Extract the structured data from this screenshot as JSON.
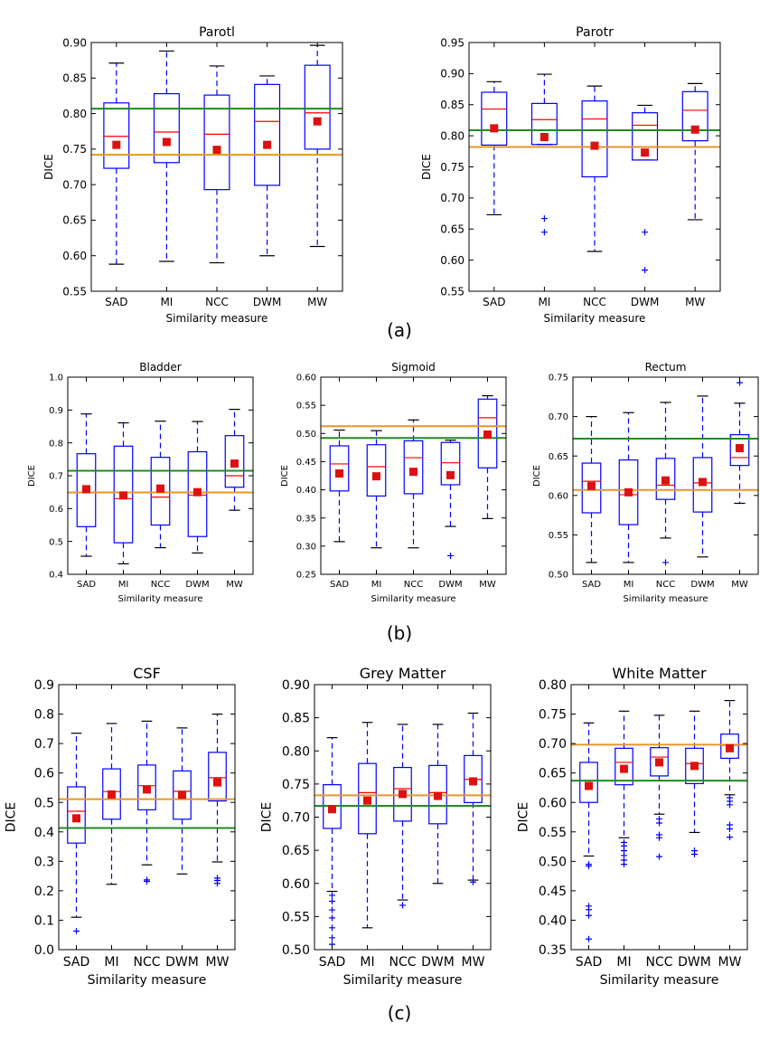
{
  "figure": {
    "common": {
      "xlabel": "Similarity measure",
      "ylabel": "DICE",
      "categories": [
        "SAD",
        "MI",
        "NCC",
        "DWM",
        "MW"
      ]
    },
    "group_labels": [
      "(a)",
      "(b)",
      "(c)"
    ]
  },
  "colors": {
    "box": "#0000ff",
    "median": "#ff0000",
    "mean": "#dd1111",
    "line_green": "#228b22",
    "line_orange": "#e6962a"
  },
  "chart_data": [
    {
      "type": "box",
      "title": "Parotl",
      "xlabel": "Similarity measure",
      "ylabel": "DICE",
      "categories": [
        "SAD",
        "MI",
        "NCC",
        "DWM",
        "MW"
      ],
      "ylim": [
        0.55,
        0.9
      ],
      "yticks": [
        "0.55",
        "0.60",
        "0.65",
        "0.70",
        "0.75",
        "0.80",
        "0.85",
        "0.90"
      ],
      "boxes": [
        {
          "whislo": 0.588,
          "q1": 0.723,
          "med": 0.768,
          "q3": 0.815,
          "whishi": 0.871,
          "mean": 0.756,
          "fliers": []
        },
        {
          "whislo": 0.592,
          "q1": 0.731,
          "med": 0.774,
          "q3": 0.828,
          "whishi": 0.888,
          "mean": 0.76,
          "fliers": []
        },
        {
          "whislo": 0.59,
          "q1": 0.693,
          "med": 0.771,
          "q3": 0.826,
          "whishi": 0.867,
          "mean": 0.749,
          "fliers": []
        },
        {
          "whislo": 0.6,
          "q1": 0.699,
          "med": 0.789,
          "q3": 0.841,
          "whishi": 0.853,
          "mean": 0.756,
          "fliers": []
        },
        {
          "whislo": 0.613,
          "q1": 0.75,
          "med": 0.801,
          "q3": 0.868,
          "whishi": 0.896,
          "mean": 0.789,
          "fliers": []
        }
      ],
      "hlines": {
        "green": 0.807,
        "orange": 0.742
      }
    },
    {
      "type": "box",
      "title": "Parotr",
      "xlabel": "Similarity measure",
      "ylabel": "DICE",
      "categories": [
        "SAD",
        "MI",
        "NCC",
        "DWM",
        "MW"
      ],
      "ylim": [
        0.55,
        0.95
      ],
      "yticks": [
        "0.55",
        "0.60",
        "0.65",
        "0.70",
        "0.75",
        "0.80",
        "0.85",
        "0.90",
        "0.95"
      ],
      "boxes": [
        {
          "whislo": 0.673,
          "q1": 0.785,
          "med": 0.843,
          "q3": 0.87,
          "whishi": 0.887,
          "mean": 0.812,
          "fliers": []
        },
        {
          "whislo": 0.786,
          "q1": 0.786,
          "med": 0.826,
          "q3": 0.852,
          "whishi": 0.899,
          "mean": 0.798,
          "fliers": [
            0.667,
            0.645
          ]
        },
        {
          "whislo": 0.614,
          "q1": 0.734,
          "med": 0.827,
          "q3": 0.856,
          "whishi": 0.88,
          "mean": 0.784,
          "fliers": []
        },
        {
          "whislo": 0.761,
          "q1": 0.761,
          "med": 0.817,
          "q3": 0.837,
          "whishi": 0.849,
          "mean": 0.773,
          "fliers": [
            0.645,
            0.584
          ]
        },
        {
          "whislo": 0.665,
          "q1": 0.792,
          "med": 0.841,
          "q3": 0.871,
          "whishi": 0.884,
          "mean": 0.81,
          "fliers": []
        }
      ],
      "hlines": {
        "green": 0.809,
        "orange": 0.782
      }
    },
    {
      "type": "box",
      "title": "Bladder",
      "xlabel": "Similarity measure",
      "ylabel": "DICE",
      "categories": [
        "SAD",
        "MI",
        "NCC",
        "DWM",
        "MW"
      ],
      "ylim": [
        0.4,
        1.0
      ],
      "yticks": [
        "0.4",
        "0.5",
        "0.6",
        "0.7",
        "0.8",
        "0.9",
        "1.0"
      ],
      "boxes": [
        {
          "whislo": 0.455,
          "q1": 0.545,
          "med": 0.65,
          "q3": 0.767,
          "whishi": 0.888,
          "mean": 0.659,
          "fliers": []
        },
        {
          "whislo": 0.432,
          "q1": 0.496,
          "med": 0.63,
          "q3": 0.79,
          "whishi": 0.861,
          "mean": 0.64,
          "fliers": []
        },
        {
          "whislo": 0.481,
          "q1": 0.55,
          "med": 0.635,
          "q3": 0.756,
          "whishi": 0.866,
          "mean": 0.661,
          "fliers": []
        },
        {
          "whislo": 0.465,
          "q1": 0.515,
          "med": 0.641,
          "q3": 0.773,
          "whishi": 0.865,
          "mean": 0.65,
          "fliers": []
        },
        {
          "whislo": 0.595,
          "q1": 0.665,
          "med": 0.7,
          "q3": 0.822,
          "whishi": 0.902,
          "mean": 0.737,
          "fliers": []
        }
      ],
      "hlines": {
        "green": 0.715,
        "orange": 0.649
      }
    },
    {
      "type": "box",
      "title": "Sigmoid",
      "xlabel": "Similarity measure",
      "ylabel": "DICE",
      "categories": [
        "SAD",
        "MI",
        "NCC",
        "DWM",
        "MW"
      ],
      "ylim": [
        0.25,
        0.6
      ],
      "yticks": [
        "0.25",
        "0.30",
        "0.35",
        "0.40",
        "0.45",
        "0.50",
        "0.55",
        "0.60"
      ],
      "boxes": [
        {
          "whislo": 0.308,
          "q1": 0.398,
          "med": 0.446,
          "q3": 0.478,
          "whishi": 0.506,
          "mean": 0.429,
          "fliers": []
        },
        {
          "whislo": 0.297,
          "q1": 0.389,
          "med": 0.441,
          "q3": 0.48,
          "whishi": 0.505,
          "mean": 0.424,
          "fliers": []
        },
        {
          "whislo": 0.297,
          "q1": 0.393,
          "med": 0.457,
          "q3": 0.487,
          "whishi": 0.524,
          "mean": 0.432,
          "fliers": []
        },
        {
          "whislo": 0.335,
          "q1": 0.409,
          "med": 0.448,
          "q3": 0.484,
          "whishi": 0.488,
          "mean": 0.426,
          "fliers": [
            0.283
          ]
        },
        {
          "whislo": 0.349,
          "q1": 0.439,
          "med": 0.528,
          "q3": 0.561,
          "whishi": 0.567,
          "mean": 0.498,
          "fliers": []
        }
      ],
      "hlines": {
        "green": 0.492,
        "orange": 0.513
      }
    },
    {
      "type": "box",
      "title": "Rectum",
      "xlabel": "Similarity measure",
      "ylabel": "DICE",
      "categories": [
        "SAD",
        "MI",
        "NCC",
        "DWM",
        "MW"
      ],
      "ylim": [
        0.5,
        0.75
      ],
      "yticks": [
        "0.50",
        "0.55",
        "0.60",
        "0.65",
        "0.70",
        "0.75"
      ],
      "boxes": [
        {
          "whislo": 0.515,
          "q1": 0.578,
          "med": 0.618,
          "q3": 0.641,
          "whishi": 0.7,
          "mean": 0.612,
          "fliers": []
        },
        {
          "whislo": 0.515,
          "q1": 0.563,
          "med": 0.601,
          "q3": 0.645,
          "whishi": 0.705,
          "mean": 0.604,
          "fliers": []
        },
        {
          "whislo": 0.546,
          "q1": 0.595,
          "med": 0.613,
          "q3": 0.647,
          "whishi": 0.718,
          "mean": 0.619,
          "fliers": [
            0.515
          ]
        },
        {
          "whislo": 0.522,
          "q1": 0.579,
          "med": 0.616,
          "q3": 0.648,
          "whishi": 0.726,
          "mean": 0.617,
          "fliers": []
        },
        {
          "whislo": 0.59,
          "q1": 0.638,
          "med": 0.648,
          "q3": 0.677,
          "whishi": 0.717,
          "mean": 0.66,
          "fliers": [
            0.743
          ]
        }
      ],
      "hlines": {
        "green": 0.672,
        "orange": 0.607
      }
    },
    {
      "type": "box",
      "title": "CSF",
      "xlabel": "Similarity measure",
      "ylabel": "DICE",
      "categories": [
        "SAD",
        "MI",
        "NCC",
        "DWM",
        "MW"
      ],
      "ylim": [
        0.0,
        0.9
      ],
      "yticks": [
        "0.0",
        "0.1",
        "0.2",
        "0.3",
        "0.4",
        "0.5",
        "0.6",
        "0.7",
        "0.8",
        "0.9"
      ],
      "boxes": [
        {
          "whislo": 0.11,
          "q1": 0.362,
          "med": 0.47,
          "q3": 0.553,
          "whishi": 0.735,
          "mean": 0.446,
          "fliers": [
            0.063
          ]
        },
        {
          "whislo": 0.222,
          "q1": 0.443,
          "med": 0.537,
          "q3": 0.614,
          "whishi": 0.768,
          "mean": 0.527,
          "fliers": []
        },
        {
          "whislo": 0.288,
          "q1": 0.475,
          "med": 0.557,
          "q3": 0.627,
          "whishi": 0.776,
          "mean": 0.544,
          "fliers": [
            0.237,
            0.232
          ]
        },
        {
          "whislo": 0.257,
          "q1": 0.443,
          "med": 0.538,
          "q3": 0.607,
          "whishi": 0.753,
          "mean": 0.526,
          "fliers": []
        },
        {
          "whislo": 0.298,
          "q1": 0.505,
          "med": 0.584,
          "q3": 0.67,
          "whishi": 0.8,
          "mean": 0.568,
          "fliers": [
            0.243,
            0.235,
            0.225
          ]
        }
      ],
      "hlines": {
        "green": 0.413,
        "orange": 0.511
      }
    },
    {
      "type": "box",
      "title": "Grey Matter",
      "xlabel": "Similarity measure",
      "ylabel": "DICE",
      "categories": [
        "SAD",
        "MI",
        "NCC",
        "DWM",
        "MW"
      ],
      "ylim": [
        0.5,
        0.9
      ],
      "yticks": [
        "0.50",
        "0.55",
        "0.60",
        "0.65",
        "0.70",
        "0.75",
        "0.80",
        "0.85",
        "0.90"
      ],
      "boxes": [
        {
          "whislo": 0.588,
          "q1": 0.683,
          "med": 0.717,
          "q3": 0.749,
          "whishi": 0.82,
          "mean": 0.712,
          "fliers": [
            0.582,
            0.573,
            0.56,
            0.548,
            0.533,
            0.518,
            0.508
          ]
        },
        {
          "whislo": 0.533,
          "q1": 0.675,
          "med": 0.737,
          "q3": 0.781,
          "whishi": 0.843,
          "mean": 0.725,
          "fliers": []
        },
        {
          "whislo": 0.575,
          "q1": 0.694,
          "med": 0.743,
          "q3": 0.775,
          "whishi": 0.84,
          "mean": 0.735,
          "fliers": [
            0.567
          ]
        },
        {
          "whislo": 0.6,
          "q1": 0.69,
          "med": 0.737,
          "q3": 0.778,
          "whishi": 0.84,
          "mean": 0.732,
          "fliers": []
        },
        {
          "whislo": 0.605,
          "q1": 0.722,
          "med": 0.757,
          "q3": 0.793,
          "whishi": 0.857,
          "mean": 0.754,
          "fliers": [
            0.602
          ]
        }
      ],
      "hlines": {
        "green": 0.717,
        "orange": 0.733
      }
    },
    {
      "type": "box",
      "title": "White Matter",
      "xlabel": "Similarity measure",
      "ylabel": "DICE",
      "categories": [
        "SAD",
        "MI",
        "NCC",
        "DWM",
        "MW"
      ],
      "ylim": [
        0.35,
        0.8
      ],
      "yticks": [
        "0.35",
        "0.40",
        "0.45",
        "0.50",
        "0.55",
        "0.60",
        "0.65",
        "0.70",
        "0.75",
        "0.80"
      ],
      "boxes": [
        {
          "whislo": 0.509,
          "q1": 0.6,
          "med": 0.637,
          "q3": 0.668,
          "whishi": 0.735,
          "mean": 0.628,
          "fliers": [
            0.495,
            0.492,
            0.424,
            0.418,
            0.408,
            0.368
          ]
        },
        {
          "whislo": 0.54,
          "q1": 0.63,
          "med": 0.668,
          "q3": 0.692,
          "whishi": 0.755,
          "mean": 0.657,
          "fliers": [
            0.532,
            0.526,
            0.518,
            0.51,
            0.502,
            0.495
          ]
        },
        {
          "whislo": 0.58,
          "q1": 0.645,
          "med": 0.677,
          "q3": 0.693,
          "whishi": 0.748,
          "mean": 0.668,
          "fliers": [
            0.572,
            0.565,
            0.545,
            0.54,
            0.508
          ]
        },
        {
          "whislo": 0.549,
          "q1": 0.632,
          "med": 0.666,
          "q3": 0.692,
          "whishi": 0.755,
          "mean": 0.662,
          "fliers": [
            0.518,
            0.512
          ]
        },
        {
          "whislo": 0.613,
          "q1": 0.675,
          "med": 0.697,
          "q3": 0.716,
          "whishi": 0.773,
          "mean": 0.692,
          "fliers": [
            0.608,
            0.602,
            0.596,
            0.562,
            0.555,
            0.541
          ]
        }
      ],
      "hlines": {
        "green": 0.637,
        "orange": 0.698
      }
    }
  ]
}
